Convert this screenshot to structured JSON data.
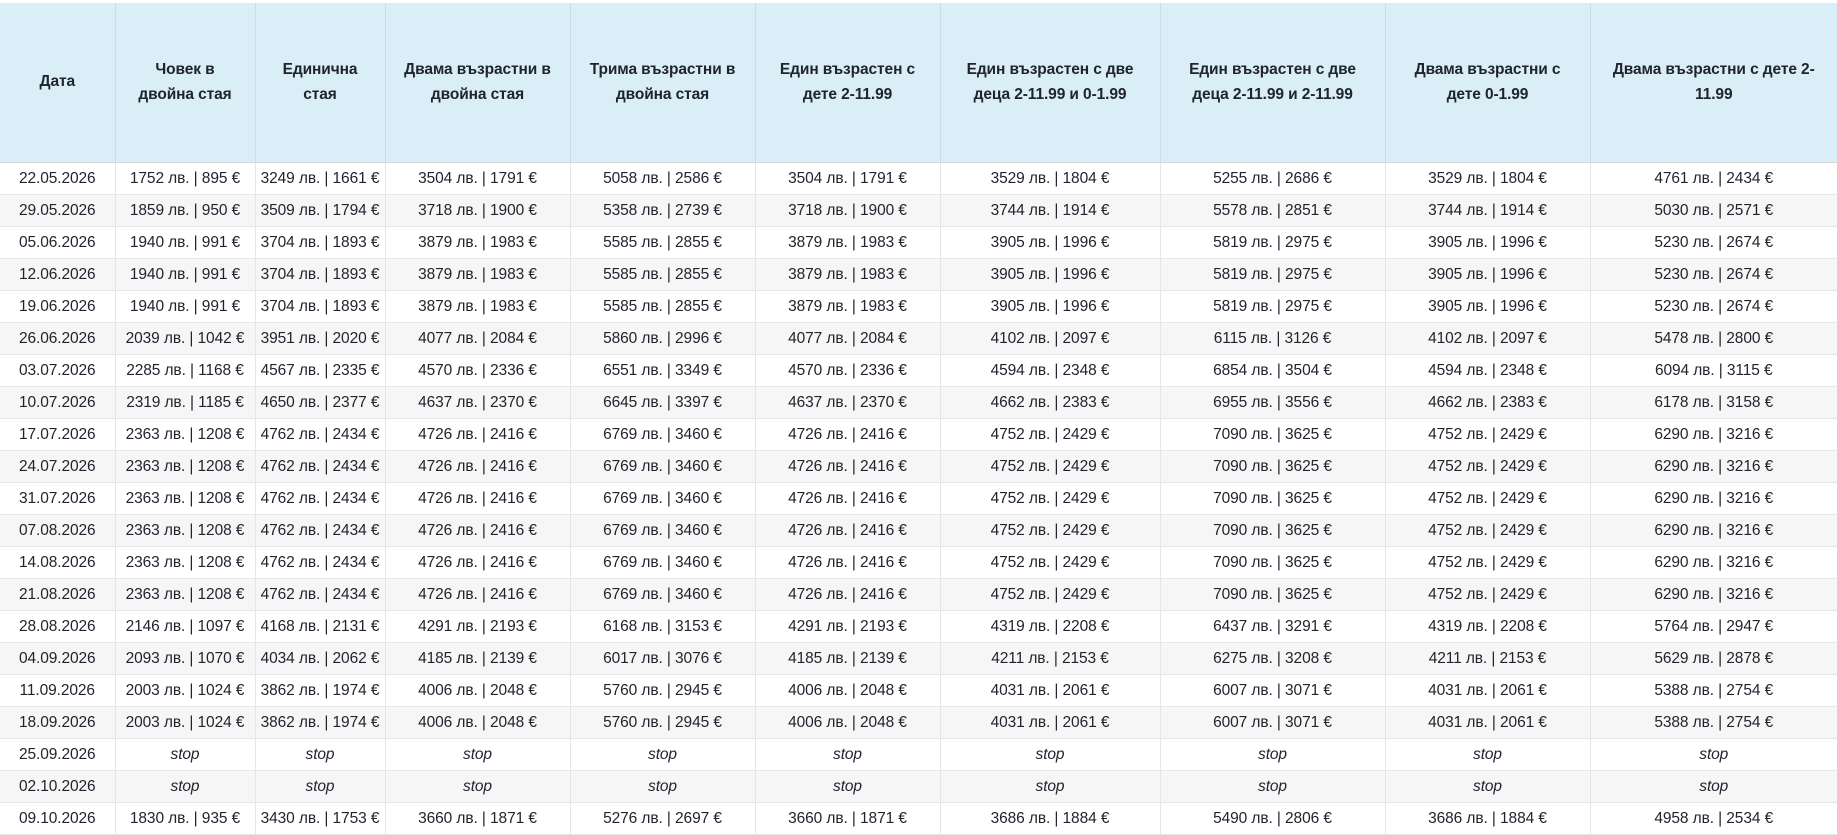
{
  "colors": {
    "header_bg": "#d9eef7",
    "row_alt_bg": "#f6f6f6",
    "text": "#20242e",
    "border": "#e6e6e6"
  },
  "table": {
    "stop_label": "stop",
    "columns": [
      {
        "label": "Дата"
      },
      {
        "label": "Човек в двойна стая"
      },
      {
        "label": "Единична стая"
      },
      {
        "label": "Двама възрастни в двойна стая"
      },
      {
        "label": "Трима възрастни в двойна стая"
      },
      {
        "label": "Един възрастен с дете 2-11.99"
      },
      {
        "label": "Един възрастен с две деца 2-11.99 и 0-1.99"
      },
      {
        "label": "Един възрастен с две деца 2-11.99 и 2-11.99"
      },
      {
        "label": "Двама възрастни с дете 0-1.99"
      },
      {
        "label": "Двама възрастни с дете 2-11.99"
      }
    ],
    "rows": [
      {
        "date": "22.05.2026",
        "cells": [
          "1752 лв. | 895 €",
          "3249 лв. | 1661 €",
          "3504 лв. | 1791 €",
          "5058 лв. | 2586 €",
          "3504 лв. | 1791 €",
          "3529 лв. | 1804 €",
          "5255 лв. | 2686 €",
          "3529 лв. | 1804 €",
          "4761 лв. | 2434 €"
        ]
      },
      {
        "date": "29.05.2026",
        "cells": [
          "1859 лв. | 950 €",
          "3509 лв. | 1794 €",
          "3718 лв. | 1900 €",
          "5358 лв. | 2739 €",
          "3718 лв. | 1900 €",
          "3744 лв. | 1914 €",
          "5578 лв. | 2851 €",
          "3744 лв. | 1914 €",
          "5030 лв. | 2571 €"
        ]
      },
      {
        "date": "05.06.2026",
        "cells": [
          "1940 лв. | 991 €",
          "3704 лв. | 1893 €",
          "3879 лв. | 1983 €",
          "5585 лв. | 2855 €",
          "3879 лв. | 1983 €",
          "3905 лв. | 1996 €",
          "5819 лв. | 2975 €",
          "3905 лв. | 1996 €",
          "5230 лв. | 2674 €"
        ]
      },
      {
        "date": "12.06.2026",
        "cells": [
          "1940 лв. | 991 €",
          "3704 лв. | 1893 €",
          "3879 лв. | 1983 €",
          "5585 лв. | 2855 €",
          "3879 лв. | 1983 €",
          "3905 лв. | 1996 €",
          "5819 лв. | 2975 €",
          "3905 лв. | 1996 €",
          "5230 лв. | 2674 €"
        ]
      },
      {
        "date": "19.06.2026",
        "cells": [
          "1940 лв. | 991 €",
          "3704 лв. | 1893 €",
          "3879 лв. | 1983 €",
          "5585 лв. | 2855 €",
          "3879 лв. | 1983 €",
          "3905 лв. | 1996 €",
          "5819 лв. | 2975 €",
          "3905 лв. | 1996 €",
          "5230 лв. | 2674 €"
        ]
      },
      {
        "date": "26.06.2026",
        "cells": [
          "2039 лв. | 1042 €",
          "3951 лв. | 2020 €",
          "4077 лв. | 2084 €",
          "5860 лв. | 2996 €",
          "4077 лв. | 2084 €",
          "4102 лв. | 2097 €",
          "6115 лв. | 3126 €",
          "4102 лв. | 2097 €",
          "5478 лв. | 2800 €"
        ]
      },
      {
        "date": "03.07.2026",
        "cells": [
          "2285 лв. | 1168 €",
          "4567 лв. | 2335 €",
          "4570 лв. | 2336 €",
          "6551 лв. | 3349 €",
          "4570 лв. | 2336 €",
          "4594 лв. | 2348 €",
          "6854 лв. | 3504 €",
          "4594 лв. | 2348 €",
          "6094 лв. | 3115 €"
        ]
      },
      {
        "date": "10.07.2026",
        "cells": [
          "2319 лв. | 1185 €",
          "4650 лв. | 2377 €",
          "4637 лв. | 2370 €",
          "6645 лв. | 3397 €",
          "4637 лв. | 2370 €",
          "4662 лв. | 2383 €",
          "6955 лв. | 3556 €",
          "4662 лв. | 2383 €",
          "6178 лв. | 3158 €"
        ]
      },
      {
        "date": "17.07.2026",
        "cells": [
          "2363 лв. | 1208 €",
          "4762 лв. | 2434 €",
          "4726 лв. | 2416 €",
          "6769 лв. | 3460 €",
          "4726 лв. | 2416 €",
          "4752 лв. | 2429 €",
          "7090 лв. | 3625 €",
          "4752 лв. | 2429 €",
          "6290 лв. | 3216 €"
        ]
      },
      {
        "date": "24.07.2026",
        "cells": [
          "2363 лв. | 1208 €",
          "4762 лв. | 2434 €",
          "4726 лв. | 2416 €",
          "6769 лв. | 3460 €",
          "4726 лв. | 2416 €",
          "4752 лв. | 2429 €",
          "7090 лв. | 3625 €",
          "4752 лв. | 2429 €",
          "6290 лв. | 3216 €"
        ]
      },
      {
        "date": "31.07.2026",
        "cells": [
          "2363 лв. | 1208 €",
          "4762 лв. | 2434 €",
          "4726 лв. | 2416 €",
          "6769 лв. | 3460 €",
          "4726 лв. | 2416 €",
          "4752 лв. | 2429 €",
          "7090 лв. | 3625 €",
          "4752 лв. | 2429 €",
          "6290 лв. | 3216 €"
        ]
      },
      {
        "date": "07.08.2026",
        "cells": [
          "2363 лв. | 1208 €",
          "4762 лв. | 2434 €",
          "4726 лв. | 2416 €",
          "6769 лв. | 3460 €",
          "4726 лв. | 2416 €",
          "4752 лв. | 2429 €",
          "7090 лв. | 3625 €",
          "4752 лв. | 2429 €",
          "6290 лв. | 3216 €"
        ]
      },
      {
        "date": "14.08.2026",
        "cells": [
          "2363 лв. | 1208 €",
          "4762 лв. | 2434 €",
          "4726 лв. | 2416 €",
          "6769 лв. | 3460 €",
          "4726 лв. | 2416 €",
          "4752 лв. | 2429 €",
          "7090 лв. | 3625 €",
          "4752 лв. | 2429 €",
          "6290 лв. | 3216 €"
        ]
      },
      {
        "date": "21.08.2026",
        "cells": [
          "2363 лв. | 1208 €",
          "4762 лв. | 2434 €",
          "4726 лв. | 2416 €",
          "6769 лв. | 3460 €",
          "4726 лв. | 2416 €",
          "4752 лв. | 2429 €",
          "7090 лв. | 3625 €",
          "4752 лв. | 2429 €",
          "6290 лв. | 3216 €"
        ]
      },
      {
        "date": "28.08.2026",
        "cells": [
          "2146 лв. | 1097 €",
          "4168 лв. | 2131 €",
          "4291 лв. | 2193 €",
          "6168 лв. | 3153 €",
          "4291 лв. | 2193 €",
          "4319 лв. | 2208 €",
          "6437 лв. | 3291 €",
          "4319 лв. | 2208 €",
          "5764 лв. | 2947 €"
        ]
      },
      {
        "date": "04.09.2026",
        "cells": [
          "2093 лв. | 1070 €",
          "4034 лв. | 2062 €",
          "4185 лв. | 2139 €",
          "6017 лв. | 3076 €",
          "4185 лв. | 2139 €",
          "4211 лв. | 2153 €",
          "6275 лв. | 3208 €",
          "4211 лв. | 2153 €",
          "5629 лв. | 2878 €"
        ]
      },
      {
        "date": "11.09.2026",
        "cells": [
          "2003 лв. | 1024 €",
          "3862 лв. | 1974 €",
          "4006 лв. | 2048 €",
          "5760 лв. | 2945 €",
          "4006 лв. | 2048 €",
          "4031 лв. | 2061 €",
          "6007 лв. | 3071 €",
          "4031 лв. | 2061 €",
          "5388 лв. | 2754 €"
        ]
      },
      {
        "date": "18.09.2026",
        "cells": [
          "2003 лв. | 1024 €",
          "3862 лв. | 1974 €",
          "4006 лв. | 2048 €",
          "5760 лв. | 2945 €",
          "4006 лв. | 2048 €",
          "4031 лв. | 2061 €",
          "6007 лв. | 3071 €",
          "4031 лв. | 2061 €",
          "5388 лв. | 2754 €"
        ]
      },
      {
        "date": "25.09.2026",
        "cells": [
          "stop",
          "stop",
          "stop",
          "stop",
          "stop",
          "stop",
          "stop",
          "stop",
          "stop"
        ]
      },
      {
        "date": "02.10.2026",
        "cells": [
          "stop",
          "stop",
          "stop",
          "stop",
          "stop",
          "stop",
          "stop",
          "stop",
          "stop"
        ]
      },
      {
        "date": "09.10.2026",
        "cells": [
          "1830 лв. | 935 €",
          "3430 лв. | 1753 €",
          "3660 лв. | 1871 €",
          "5276 лв. | 2697 €",
          "3660 лв. | 1871 €",
          "3686 лв. | 1884 €",
          "5490 лв. | 2806 €",
          "3686 лв. | 1884 €",
          "4958 лв. | 2534 €"
        ]
      }
    ]
  }
}
